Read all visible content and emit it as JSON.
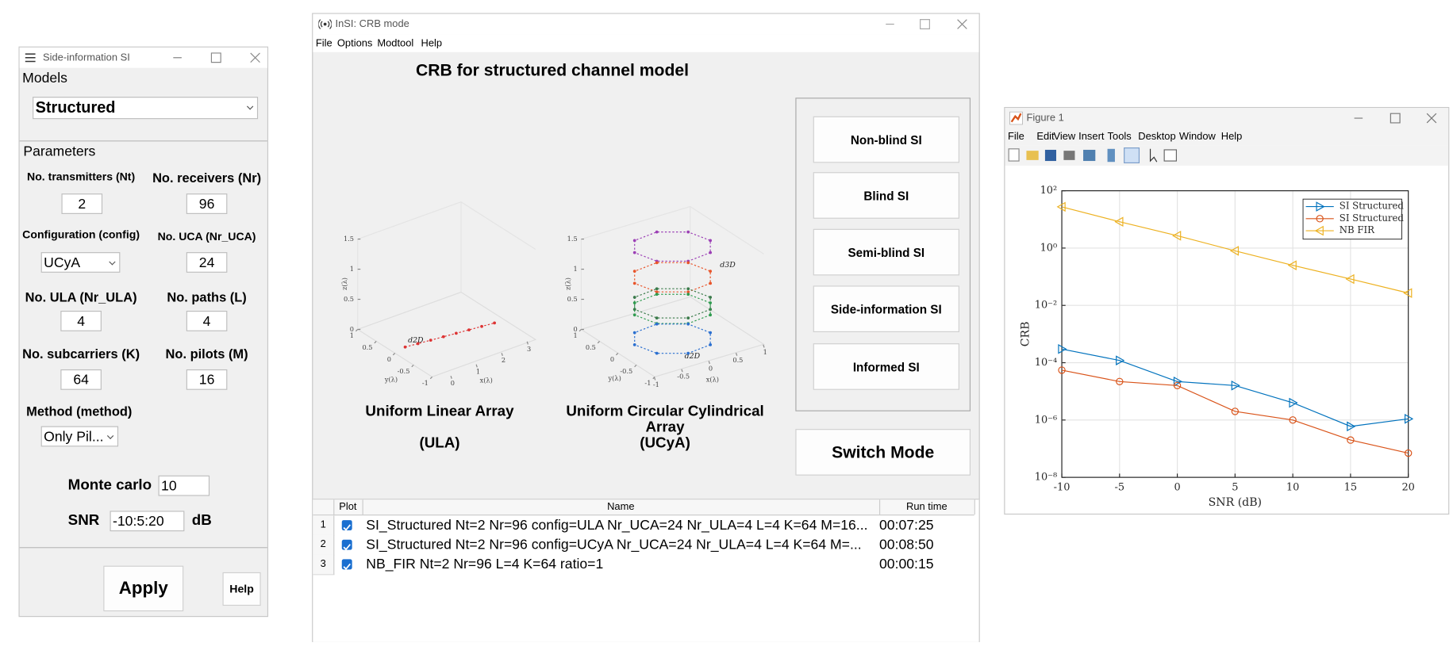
{
  "side_window": {
    "title": "Side-information SI",
    "models_label": "Models",
    "model": "Structured",
    "parameters_label": "Parameters",
    "fields": [
      {
        "label": "No. transmitters (Nt)",
        "value": 2
      },
      {
        "label": "No. receivers (Nr)",
        "value": 96
      },
      {
        "label": "Configuration (config)",
        "value": "UCyA"
      },
      {
        "label": "No. UCA (Nr_UCA)",
        "value": 24
      },
      {
        "label": "No. ULA (Nr_ULA)",
        "value": 4
      },
      {
        "label": "No. paths (L)",
        "value": 4
      },
      {
        "label": "No. subcarriers (K)",
        "value": 64
      },
      {
        "label": "No. pilots (M)",
        "value": 16
      },
      {
        "label": "Method (method)",
        "value": "Only Pil..."
      }
    ],
    "monte_carlo": {
      "label": "Monte carlo",
      "value": 10
    },
    "snr": {
      "label": "SNR",
      "value": "-10:5:20",
      "unit": "dB"
    },
    "buttons": [
      "Apply",
      "Help"
    ]
  },
  "main_window": {
    "title": "InSI: CRB mode",
    "menu": [
      "File",
      "Options",
      "Modtool",
      "Help"
    ],
    "heading": "CRB for structured channel model",
    "arrays": [
      {
        "name": "Uniform Linear Array",
        "abbr": "(ULA)",
        "z_ticks": [
          0,
          0.5,
          1,
          1.5
        ],
        "y_ticks": [
          1,
          0.5,
          0,
          -0.5,
          -1
        ],
        "x_ticks": [
          0,
          1,
          2,
          3
        ],
        "z_label": "z(λ)",
        "y_label": "y(λ)",
        "x_label": "x(λ)",
        "annotations": [
          "d2D"
        ]
      },
      {
        "name": "Uniform Circular Cylindrical Array",
        "abbr": "(UCyA)",
        "z_ticks": [
          0,
          0.5,
          1,
          1.5
        ],
        "y_ticks": [
          1,
          0.5,
          0,
          -0.5,
          -1
        ],
        "x_ticks": [
          -1,
          -0.5,
          0,
          0.5,
          1
        ],
        "z_label": "z(λ)",
        "y_label": "y(λ)",
        "x_label": "x(λ)",
        "annotations": [
          "d3D",
          "d2D"
        ]
      }
    ],
    "buttons": [
      "Non-blind SI",
      "Blind SI",
      "Semi-blind SI",
      "Side-information SI",
      "Informed SI"
    ],
    "switch_button": "Switch Mode",
    "table": {
      "columns": [
        "Plot",
        "Name",
        "Run time"
      ],
      "rows": [
        {
          "index": 1,
          "name": "SI_Structured Nt=2 Nr=96 config=ULA Nr_UCA=24 Nr_ULA=4 L=4 K=64 M=16...",
          "run_time": "00:07:25"
        },
        {
          "index": 2,
          "name": "SI_Structured Nt=2 Nr=96 config=UCyA Nr_UCA=24 Nr_ULA=4 L=4 K=64 M=...",
          "run_time": "00:08:50"
        },
        {
          "index": 3,
          "name": "NB_FIR Nt=2 Nr=96 L=4 K=64 ratio=1",
          "run_time": "00:00:15"
        }
      ]
    }
  },
  "figure_window": {
    "title": "Figure 1",
    "menu": [
      "File",
      "Edit",
      "View",
      "Insert",
      "Tools",
      "Desktop",
      "Window",
      "Help"
    ],
    "chart_data": {
      "type": "line",
      "xlabel": "SNR (dB)",
      "ylabel": "CRB",
      "log_y": true,
      "grid": true,
      "legend": "top-right",
      "x": [
        -10,
        -5,
        0,
        5,
        10,
        15,
        20
      ],
      "xlim": [
        -10,
        20
      ],
      "xticks": [
        -10,
        -5,
        0,
        5,
        10,
        15,
        20
      ],
      "ylim": [
        1e-08,
        100
      ],
      "yticks": [
        {
          "value": 1e-08,
          "label": "10⁻⁸"
        },
        {
          "value": 1e-06,
          "label": "10⁻⁶"
        },
        {
          "value": 0.0001,
          "label": "10⁻⁴"
        },
        {
          "value": 0.01,
          "label": "10⁻²"
        },
        {
          "value": 1,
          "label": "10⁰"
        },
        {
          "value": 100,
          "label": "10²"
        }
      ],
      "series": [
        {
          "name": "SI Structured",
          "color": "#0072bd",
          "marker": "triangle-right",
          "values": [
            0.0003,
            0.00012,
            2.2e-05,
            1.6e-05,
            4e-06,
            6e-07,
            1.1e-06
          ]
        },
        {
          "name": "SI Structured",
          "color": "#d95319",
          "marker": "circle",
          "values": [
            5.5e-05,
            2.2e-05,
            1.6e-05,
            2e-06,
            1e-06,
            2e-07,
            7e-08
          ]
        },
        {
          "name": "NB FIR",
          "color": "#edb120",
          "marker": "triangle-left",
          "values": [
            27.5,
            8.3,
            2.7,
            0.8,
            0.25,
            0.083,
            0.027
          ]
        }
      ]
    }
  }
}
